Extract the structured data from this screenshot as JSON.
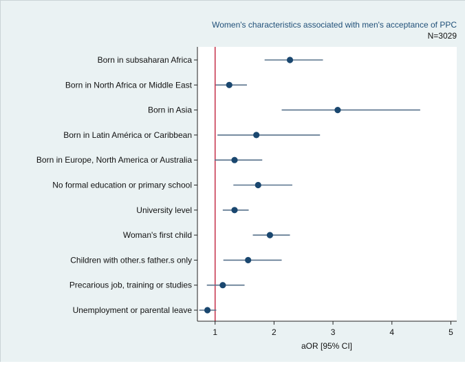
{
  "chart_data": {
    "type": "forest",
    "title": "Women's characteristics associated with men's acceptance of PPC",
    "subtitle": "N=3029",
    "xlabel": "aOR [95% CI]",
    "xlim": [
      0.7,
      5.1
    ],
    "xticks": [
      "1",
      "2",
      "3",
      "4",
      "5"
    ],
    "reference_line": 1,
    "grid": false,
    "colors": {
      "plot_background": "#ffffff",
      "outer_background": "#eaf2f3",
      "point": "#1a476f",
      "ci_line": "#56708a",
      "reference_line": "#c1213c",
      "title": "#1f4f78"
    },
    "categories": [
      "Born in subsaharan Africa",
      "Born in North Africa or Middle East",
      "Born in Asia",
      "Born in Latin América or Caribbean",
      "Born in Europe, North America or Australia",
      "No formal education or primary school",
      "University level",
      "Woman's first child",
      "Children with other.s father.s only",
      "Precarious job, training or studies",
      "Unemployment or parental leave"
    ],
    "estimates": [
      2.27,
      1.24,
      3.08,
      1.7,
      1.33,
      1.73,
      1.33,
      1.93,
      1.56,
      1.13,
      0.87
    ],
    "ci_low": [
      1.84,
      1.01,
      2.13,
      1.04,
      0.99,
      1.31,
      1.13,
      1.64,
      1.14,
      0.86,
      0.73
    ],
    "ci_high": [
      2.83,
      1.54,
      4.48,
      2.78,
      1.8,
      2.31,
      1.57,
      2.27,
      2.13,
      1.5,
      1.02
    ]
  }
}
